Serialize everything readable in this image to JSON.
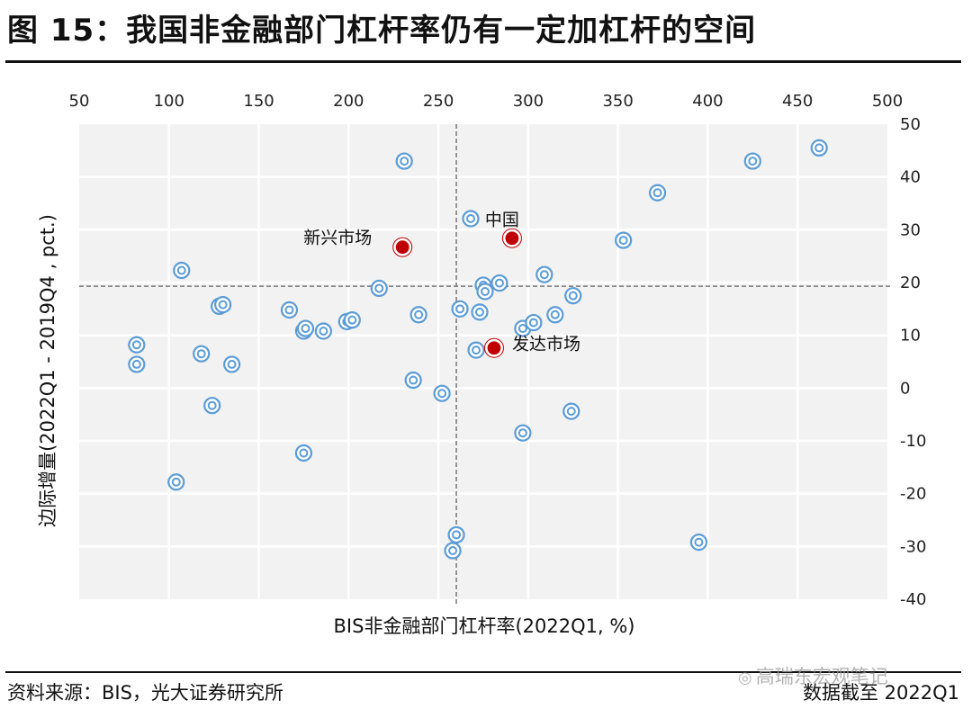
{
  "title": "图 15：我国非金融部门杠杆率仍有一定加杠杆的空间",
  "source": "资料来源：BIS，光大证券研究所",
  "date_note": "数据截至 2022Q1",
  "watermark": "高瑞东宏观笔记",
  "colors": {
    "plot_bg": "#f2f2f2",
    "grid": "#ffffff",
    "point_ring": "#5b9bd5",
    "highlight": "#c00000"
  },
  "chart_data": {
    "type": "scatter",
    "xlabel": "BIS非金融部门杠杆率(2022Q1, %)",
    "ylabel": "边际增量(2022Q1 - 2019Q4 , pct.)",
    "xlim": [
      50,
      500
    ],
    "ylim": [
      -40,
      50
    ],
    "x_ticks": [
      50,
      100,
      150,
      200,
      250,
      300,
      350,
      400,
      450,
      500
    ],
    "y_ticks": [
      50,
      40,
      30,
      20,
      10,
      0,
      -10,
      -20,
      -30,
      -40
    ],
    "x_axis_position": "top",
    "y_axis_position": "right",
    "grid": true,
    "reference_lines": {
      "x": 260,
      "y": 19.3
    },
    "points": [
      {
        "x": 82,
        "y": 8.2
      },
      {
        "x": 82,
        "y": 4.5
      },
      {
        "x": 107,
        "y": 22.3
      },
      {
        "x": 104,
        "y": -17.8
      },
      {
        "x": 118,
        "y": 6.5
      },
      {
        "x": 124,
        "y": -3.3
      },
      {
        "x": 128,
        "y": 15.5
      },
      {
        "x": 130,
        "y": 15.8
      },
      {
        "x": 135,
        "y": 4.5
      },
      {
        "x": 167,
        "y": 14.8
      },
      {
        "x": 175,
        "y": 10.8
      },
      {
        "x": 176,
        "y": 11.3
      },
      {
        "x": 175,
        "y": -12.3
      },
      {
        "x": 186,
        "y": 10.8
      },
      {
        "x": 199,
        "y": 12.6
      },
      {
        "x": 202,
        "y": 12.9
      },
      {
        "x": 217,
        "y": 18.9
      },
      {
        "x": 231,
        "y": 43.0
      },
      {
        "x": 236,
        "y": 1.5
      },
      {
        "x": 239,
        "y": 13.9
      },
      {
        "x": 252,
        "y": -1.0
      },
      {
        "x": 258,
        "y": -30.8
      },
      {
        "x": 260,
        "y": -27.8
      },
      {
        "x": 262,
        "y": 15.0
      },
      {
        "x": 268,
        "y": 32.1
      },
      {
        "x": 271,
        "y": 7.2
      },
      {
        "x": 273,
        "y": 14.4
      },
      {
        "x": 275,
        "y": 19.5
      },
      {
        "x": 276,
        "y": 18.3
      },
      {
        "x": 284,
        "y": 19.9
      },
      {
        "x": 297,
        "y": 11.3
      },
      {
        "x": 297,
        "y": -8.5
      },
      {
        "x": 303,
        "y": 12.4
      },
      {
        "x": 309,
        "y": 21.5
      },
      {
        "x": 315,
        "y": 13.9
      },
      {
        "x": 324,
        "y": -4.4
      },
      {
        "x": 325,
        "y": 17.5
      },
      {
        "x": 353,
        "y": 28.0
      },
      {
        "x": 372,
        "y": 37.0
      },
      {
        "x": 395,
        "y": -29.2
      },
      {
        "x": 425,
        "y": 43.0
      },
      {
        "x": 462,
        "y": 45.5
      }
    ],
    "highlights": [
      {
        "name": "新兴市场",
        "x": 230,
        "y": 26.7
      },
      {
        "name": "中国",
        "x": 291,
        "y": 28.4
      },
      {
        "name": "发达市场",
        "x": 281,
        "y": 7.6
      }
    ]
  }
}
